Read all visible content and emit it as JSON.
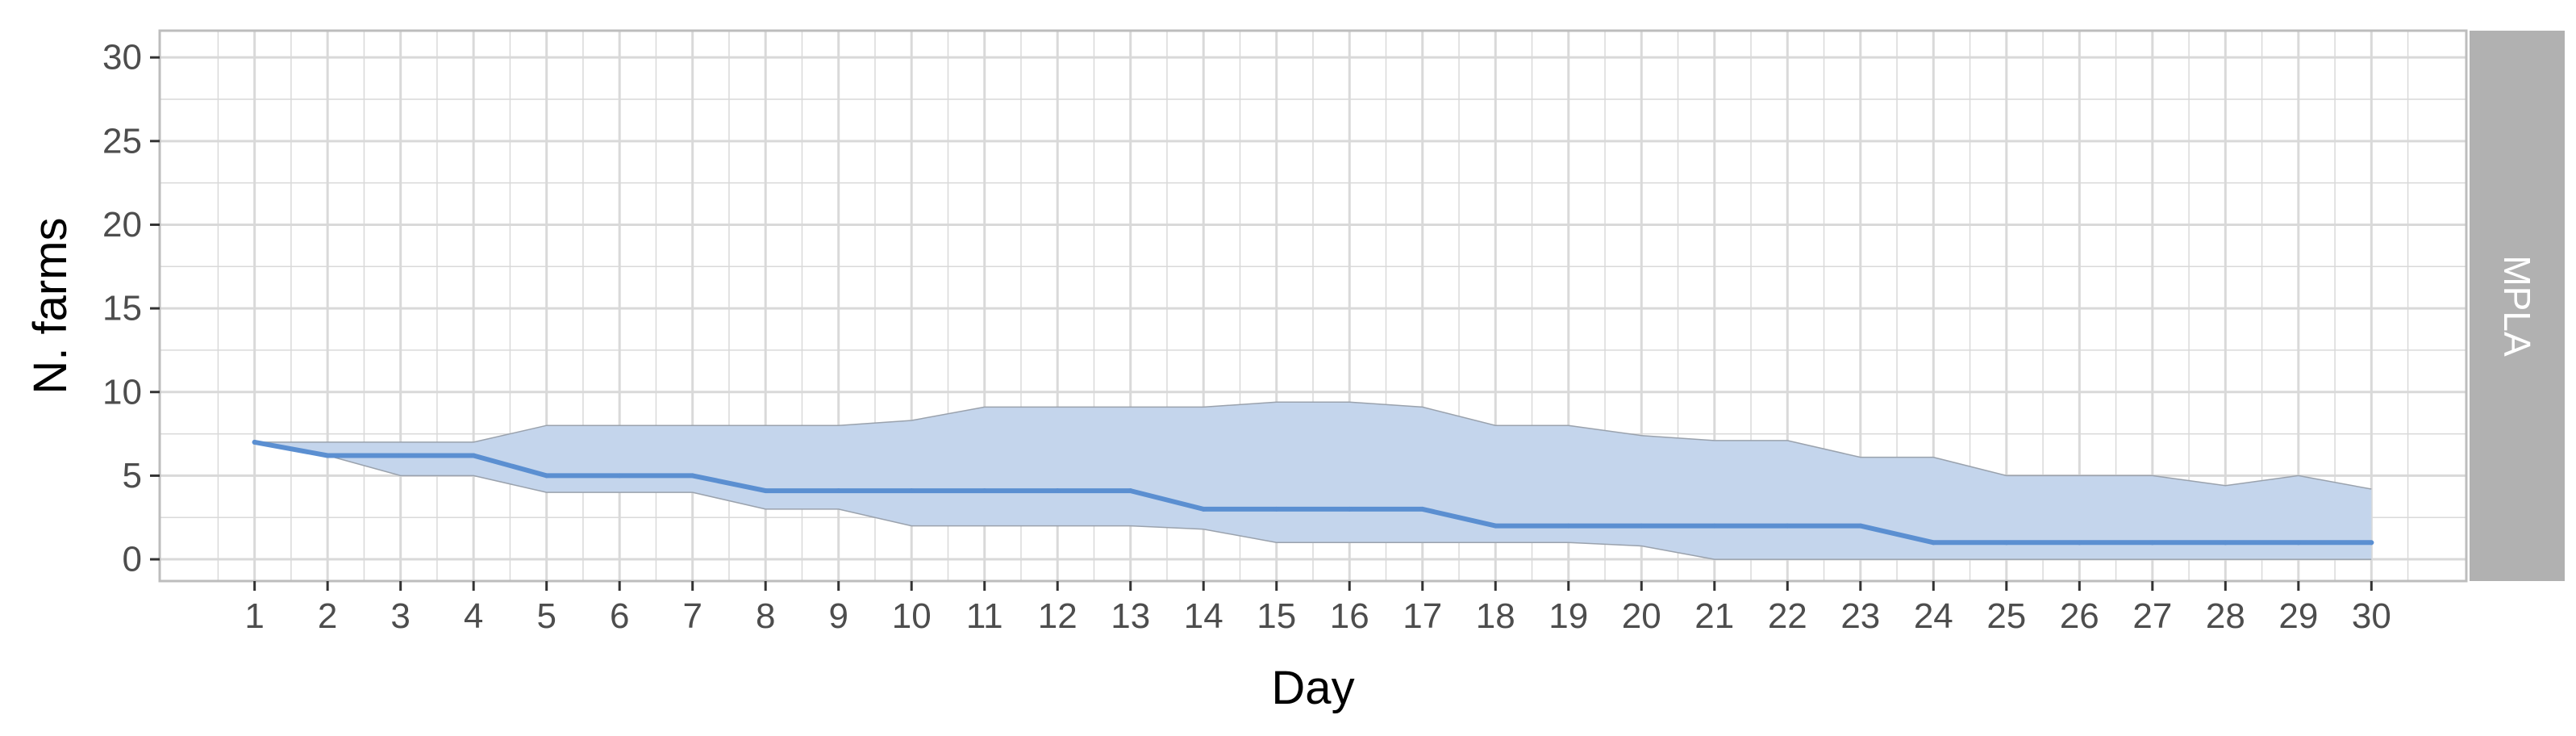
{
  "chart_data": {
    "type": "area",
    "xlabel": "Day",
    "ylabel": "N. farms",
    "facet_label": "MPLA",
    "x": [
      1,
      2,
      3,
      4,
      5,
      6,
      7,
      8,
      9,
      10,
      11,
      12,
      13,
      14,
      15,
      16,
      17,
      18,
      19,
      20,
      21,
      22,
      23,
      24,
      25,
      26,
      27,
      28,
      29,
      30
    ],
    "xlim": [
      -0.3,
      31.3
    ],
    "ylim": [
      -1.3,
      31.6
    ],
    "yticks": [
      0,
      5,
      10,
      15,
      20,
      25,
      30
    ],
    "grid": true,
    "series": [
      {
        "kind": "line",
        "values": [
          7,
          6.2,
          6.2,
          6.2,
          5,
          5,
          5,
          4.1,
          4.1,
          4.1,
          4.1,
          4.1,
          4.1,
          3,
          3,
          3,
          3,
          2,
          2,
          2,
          2,
          2,
          2,
          1,
          1,
          1,
          1,
          1,
          1,
          1
        ]
      },
      {
        "kind": "band",
        "lower": [
          7,
          6.2,
          5,
          5,
          4,
          4,
          4,
          3,
          3,
          2,
          2,
          2,
          2,
          1.8,
          1,
          1,
          1,
          1,
          1,
          0.8,
          0,
          0,
          0,
          0,
          0,
          0,
          0,
          0,
          0,
          0
        ],
        "upper": [
          7,
          7,
          7,
          7,
          8,
          8,
          8,
          8,
          8,
          8.3,
          9.1,
          9.1,
          9.1,
          9.1,
          9.4,
          9.4,
          9.1,
          8,
          8,
          7.4,
          7.1,
          7.1,
          6.1,
          6.1,
          5,
          5,
          5,
          4.4,
          5,
          4.2
        ]
      }
    ],
    "colors": {
      "line": "#5b8fd1",
      "band_fill": "#c4d5ec",
      "band_edge": "#9aa2ad",
      "grid": "#d9d9d9",
      "panel_border": "#bdbdbd",
      "strip": "#b1b1b1"
    }
  }
}
